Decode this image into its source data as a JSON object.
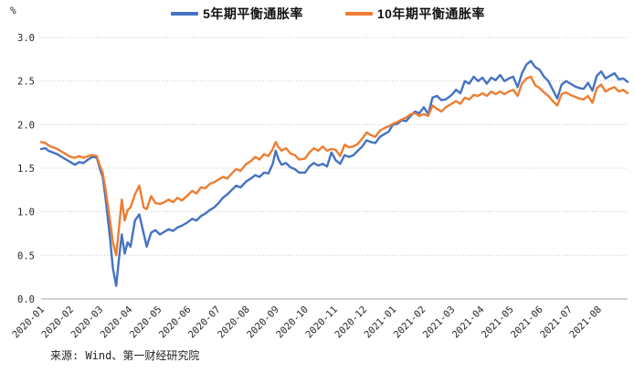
{
  "y_axis": {
    "unit": "%",
    "tick_labels": [
      "3.0",
      "2.5",
      "2.0",
      "1.5",
      "1.0",
      "0.5",
      "0.0"
    ]
  },
  "x_axis": {
    "labels": [
      "2020-01",
      "2020-02",
      "2020-03",
      "2020-04",
      "2020-05",
      "2020-06",
      "2020-07",
      "2020-08",
      "2020-09",
      "2020-10",
      "2020-11",
      "2020-12",
      "2021-01",
      "2021-02",
      "2021-03",
      "2021-04",
      "2021-05",
      "2021-06",
      "2021-07",
      "2021-08"
    ]
  },
  "legend": [
    {
      "label": "5年期平衡通胀率",
      "color": "#4472c4"
    },
    {
      "label": "10年期平衡通胀率",
      "color": "#ed7d31"
    }
  ],
  "source_note": "来源: Wind、第一财经研究院",
  "chart_data": {
    "type": "line",
    "x_unit": "months since 2020-01 (0 = 2020-01-01, 20 = end of 2021-08)",
    "ylim": [
      0,
      3
    ],
    "yticks": [
      0,
      0.5,
      1,
      1.5,
      2,
      2.5,
      3
    ],
    "grid": "horizontal-dotted",
    "legend_position": "top-center",
    "x": [
      0,
      0.15,
      0.25,
      0.4,
      0.55,
      0.7,
      0.85,
      1,
      1.15,
      1.3,
      1.45,
      1.6,
      1.75,
      1.9,
      2,
      2.1,
      2.2,
      2.35,
      2.45,
      2.56,
      2.65,
      2.75,
      2.85,
      2.95,
      3.05,
      3.2,
      3.35,
      3.5,
      3.6,
      3.75,
      3.9,
      4.05,
      4.2,
      4.35,
      4.5,
      4.65,
      4.8,
      5,
      5.15,
      5.3,
      5.45,
      5.6,
      5.75,
      5.9,
      6.05,
      6.2,
      6.35,
      6.5,
      6.65,
      6.8,
      7,
      7.15,
      7.3,
      7.45,
      7.6,
      7.75,
      7.9,
      8,
      8.1,
      8.2,
      8.35,
      8.5,
      8.65,
      8.8,
      9,
      9.15,
      9.3,
      9.45,
      9.6,
      9.75,
      9.9,
      10.05,
      10.2,
      10.35,
      10.5,
      10.65,
      10.8,
      10.95,
      11.1,
      11.25,
      11.4,
      11.55,
      11.7,
      11.85,
      12,
      12.15,
      12.3,
      12.45,
      12.6,
      12.75,
      12.9,
      13.05,
      13.2,
      13.35,
      13.5,
      13.65,
      13.8,
      14,
      14.15,
      14.3,
      14.45,
      14.6,
      14.75,
      14.9,
      15.05,
      15.2,
      15.35,
      15.5,
      15.65,
      15.8,
      15.95,
      16.1,
      16.25,
      16.4,
      16.55,
      16.7,
      16.85,
      17,
      17.15,
      17.3,
      17.45,
      17.6,
      17.75,
      17.9,
      18.05,
      18.2,
      18.35,
      18.5,
      18.65,
      18.8,
      18.95,
      19.1,
      19.25,
      19.4,
      19.55,
      19.7,
      19.85,
      20
    ],
    "series": [
      {
        "name": "5年期平衡通胀率",
        "color": "#4472c4",
        "values": [
          1.72,
          1.73,
          1.7,
          1.68,
          1.66,
          1.63,
          1.6,
          1.57,
          1.54,
          1.57,
          1.56,
          1.6,
          1.63,
          1.62,
          1.5,
          1.4,
          1.15,
          0.7,
          0.35,
          0.15,
          0.45,
          0.74,
          0.52,
          0.65,
          0.6,
          0.9,
          0.97,
          0.75,
          0.6,
          0.76,
          0.79,
          0.74,
          0.77,
          0.8,
          0.78,
          0.82,
          0.84,
          0.88,
          0.92,
          0.9,
          0.95,
          0.98,
          1.02,
          1.05,
          1.1,
          1.16,
          1.2,
          1.25,
          1.3,
          1.28,
          1.35,
          1.38,
          1.42,
          1.4,
          1.45,
          1.44,
          1.55,
          1.7,
          1.6,
          1.54,
          1.56,
          1.51,
          1.49,
          1.45,
          1.45,
          1.52,
          1.56,
          1.53,
          1.55,
          1.52,
          1.68,
          1.59,
          1.55,
          1.65,
          1.63,
          1.65,
          1.7,
          1.75,
          1.82,
          1.8,
          1.79,
          1.86,
          1.89,
          1.92,
          2,
          2.01,
          2.05,
          2.04,
          2.1,
          2.15,
          2.13,
          2.2,
          2.12,
          2.31,
          2.33,
          2.28,
          2.29,
          2.34,
          2.4,
          2.36,
          2.5,
          2.47,
          2.55,
          2.5,
          2.54,
          2.47,
          2.54,
          2.51,
          2.57,
          2.5,
          2.53,
          2.55,
          2.43,
          2.59,
          2.69,
          2.73,
          2.66,
          2.63,
          2.55,
          2.5,
          2.4,
          2.3,
          2.46,
          2.5,
          2.47,
          2.44,
          2.42,
          2.41,
          2.48,
          2.39,
          2.56,
          2.61,
          2.53,
          2.56,
          2.59,
          2.52,
          2.53,
          2.49
        ]
      },
      {
        "name": "10年期平衡通胀率",
        "color": "#ed7d31",
        "values": [
          1.8,
          1.79,
          1.76,
          1.74,
          1.72,
          1.69,
          1.66,
          1.63,
          1.62,
          1.64,
          1.62,
          1.64,
          1.65,
          1.64,
          1.53,
          1.45,
          1.25,
          0.9,
          0.65,
          0.5,
          0.8,
          1.14,
          0.9,
          1.02,
          1.05,
          1.2,
          1.3,
          1.05,
          1.03,
          1.18,
          1.1,
          1.09,
          1.11,
          1.14,
          1.11,
          1.16,
          1.13,
          1.19,
          1.24,
          1.21,
          1.28,
          1.27,
          1.32,
          1.34,
          1.37,
          1.4,
          1.38,
          1.44,
          1.49,
          1.47,
          1.55,
          1.58,
          1.63,
          1.6,
          1.66,
          1.64,
          1.72,
          1.8,
          1.74,
          1.7,
          1.73,
          1.67,
          1.65,
          1.6,
          1.61,
          1.68,
          1.73,
          1.7,
          1.75,
          1.7,
          1.72,
          1.71,
          1.64,
          1.77,
          1.74,
          1.75,
          1.78,
          1.84,
          1.91,
          1.88,
          1.86,
          1.93,
          1.96,
          1.98,
          2.01,
          2.03,
          2.06,
          2.08,
          2.12,
          2.13,
          2.1,
          2.12,
          2.1,
          2.22,
          2.18,
          2.15,
          2.2,
          2.24,
          2.27,
          2.24,
          2.31,
          2.29,
          2.34,
          2.33,
          2.36,
          2.33,
          2.38,
          2.35,
          2.38,
          2.35,
          2.38,
          2.4,
          2.33,
          2.47,
          2.53,
          2.55,
          2.45,
          2.42,
          2.37,
          2.33,
          2.27,
          2.22,
          2.35,
          2.37,
          2.34,
          2.32,
          2.3,
          2.29,
          2.33,
          2.25,
          2.42,
          2.46,
          2.38,
          2.41,
          2.43,
          2.38,
          2.4,
          2.36
        ]
      }
    ]
  }
}
